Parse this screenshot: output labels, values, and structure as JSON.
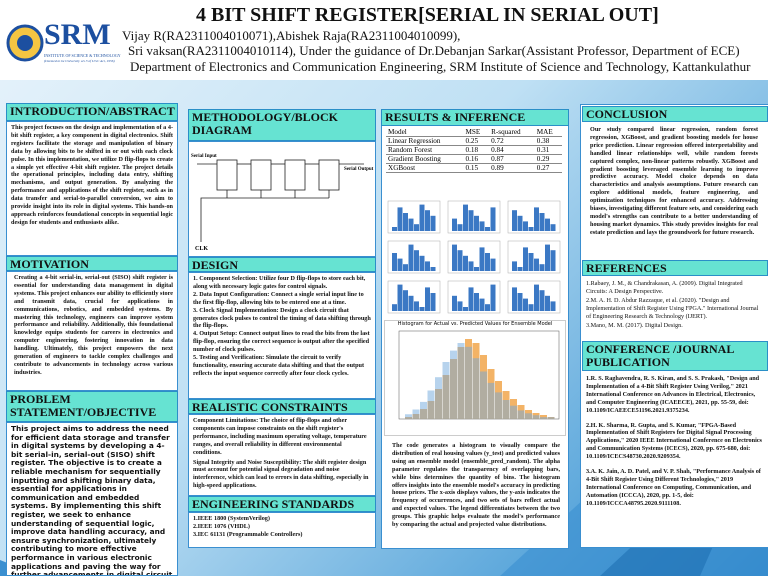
{
  "header": {
    "logo": "SRM",
    "logo_sub": "INSTITUTE OF SCIENCE & TECHNOLOGY",
    "logo_note": "(Deemed to be University u/s 3 of UGC Act, 1956)",
    "title": "4 BIT SHIFT REGISTER[SERIAL IN SERIAL OUT]",
    "authors1": "Vijay R(RA2311004010071),Abishek Raja(RA2311004010099),",
    "authors2": "Sri vaksan(RA2311004010114), Under the guidance of Dr.Debanjan Sarkar(Assistant Professor, Department of ECE)",
    "department": "Department of Electronics and Communication Engineering, SRM Institute of Science and Technology, Kattankulathur"
  },
  "introduction": {
    "heading": "INTRODUCTION/ABSTRACT",
    "text": "This project focuses on the design and implementation of a 4-bit shift register, a key component in digital electronics. Shift registers facilitate the storage and manipulation of binary data by allowing bits to be shifted in or out with each clock pulse. In this implementation, we utilize D flip-flops to create a simple yet effective 4-bit shift register. The project details the operational principles, including data entry, shifting mechanisms, and output generation. By analyzing the performance and applications of the shift register, such as in data transfer and serial-to-parallel conversion, we aim to provide insight into its role in digital systems. This hands-on approach reinforces foundational concepts in sequential logic design for students and enthusiasts alike."
  },
  "motivation": {
    "heading": "MOTIVATION",
    "text": "Creating a 4-bit serial-in, serial-out (SISO) shift register is essential for understanding data management in digital systems. This project enhances our ability to efficiently store and transmit data, crucial for applications in communications, robotics, and embedded systems. By mastering this technology, engineers can improve system performance and reliability. Additionally, this foundational knowledge equips students for careers in electronics and computer engineering, fostering innovation in data handling. Ultimately, this project empowers the next generation of engineers to tackle complex challenges and contribute to advancements in technology across various industries."
  },
  "problem": {
    "heading": "PROBLEM STATEMENT/OBJECTIVE",
    "text": "This project aims to address the need for efficient data storage and transfer in digital systems by developing a 4-bit serial-in, serial-out (SISO) shift register. The objective is to create a reliable mechanism for sequentially inputting and shifting binary data, essential for applications in communication and embedded systems. By implementing this shift register, we seek to enhance understanding of sequential logic, improve data handling accuracy, and ensure synchronization, ultimately contributing to more effective performance in various electronic applications and paving the way for further advancements in digital circuit design."
  },
  "methodology": {
    "heading": "METHODOLOGY/BLOCK DIAGRAM",
    "serial_input": "Serial Input",
    "serial_output": "Serial Output",
    "clock": "CLK"
  },
  "design": {
    "heading": "DESIGN",
    "items": [
      "1. Component Selection: Utilize four D flip-flops to store each bit, along with necessary logic gates for control signals.",
      "2. Data Input Configuration: Connect a single serial input line to the first flip-flop, allowing bits to be entered one at a time.",
      "3. Clock Signal Implementation: Design a clock circuit that generates clock pulses to control the timing of data shifting through the flip-flops.",
      "4. Output Setup: Connect output lines to read the bits from the last flip-flop, ensuring the correct sequence is output after the specified number of clock pulses.",
      "5. Testing and Verification: Simulate the circuit to verify functionality, ensuring accurate data shifting and that the output reflects the input sequence correctly after four clock cycles."
    ]
  },
  "constraints": {
    "heading": "REALISTIC CONSTRAINTS",
    "items": [
      "Component Limitations: The choice of flip-flops and other components can impose constraints on the shift register's performance, including maximum operating voltage, temperature ranges, and overall reliability in different environmental conditions.",
      "Signal Integrity and Noise Susceptibility: The shift register design must account for potential signal degradation and noise interference, which can lead to errors in data shifting, especially in high-speed applications."
    ]
  },
  "standards": {
    "heading": "ENGINEERING STANDARDS",
    "items": [
      "1.IEEE 1800 (SystemVerilog)",
      "2.IEEE 1076 (VHDL)",
      "3.IEC 61131 (Programmable Controllers)"
    ]
  },
  "results": {
    "heading": "RESULTS & INFERENCE",
    "table": {
      "columns": [
        "Model",
        "MSE",
        "R-squared",
        "MAE"
      ],
      "rows": [
        [
          "Linear Regression",
          0.25,
          0.72,
          0.38
        ],
        [
          "Random Forest",
          0.18,
          0.84,
          0.31
        ],
        [
          "Gradient Boosting",
          0.16,
          0.87,
          0.29
        ],
        [
          "XGBoost",
          0.15,
          0.89,
          0.27
        ]
      ]
    },
    "histogram_title": "Histogram for Actual vs. Predicted Values for Ensemble Model",
    "text": "The code generates a histogram to visually compare the distribution of real housing values (y_test) and predicted values using an ensemble model (ensemble_pred_random). The alpha parameter regulates the transparency of overlapping bars, while bins determines the quantity of bins. The histogram offers insights into the ensemble model's accuracy in predicting house prices. The x-axis displays values, the y-axis indicates the frequency of occurrences, and two sets of bars reflect actual and expected values. The legend differentiates between the two groups. This graphic helps evaluate the model's performance by comparing the actual and projected value distributions."
  },
  "conclusion": {
    "heading": "CONCLUSION",
    "text": "Our study compared linear regression, random forest regression, XGBoost, and gradient boosting models for house price prediction. Linear regression offered interpretability and handled linear relationships well, while random forests captured complex, non-linear patterns robustly. XGBoost and gradient boosting leveraged ensemble learning to improve predictive accuracy. Model choice depends on data characteristics and analysis assumptions. Future research can explore additional models, feature engineering, and optimization techniques for enhanced accuracy. Addressing biases, investigating different feature sets, and considering each model's strengths can contribute to a better understanding of housing market dynamics. This study provides insights for real estate prediction and lays the groundwork for future research."
  },
  "references": {
    "heading": "REFERENCES",
    "items": [
      "1.Rabaey, J. M., & Chandrakasan, A. (2009). Digital Integrated Circuits: A Design Perspective.",
      "2.M. A. H. D. Abdur Razzaque, et al. (2020). \"Design and Implementation of Shift Register Using FPGA.\" International Journal of Engineering Research & Technology (IJERT).",
      "3.Mano, M. M. (2017). Digital Design."
    ]
  },
  "conference": {
    "heading": "CONFERENCE /JOURNAL PUBLICATION",
    "items": [
      "1.R. S. Raghavendra, R. S. Kiran, and S. S. Prakash, \"Design and Implementation of a 4-Bit Shift Register Using Verilog,\" 2021 International Conference on Advances in Electrical, Electronics, and Computer Engineering (ICAEECE), 2021, pp. 55-59, doi: 10.1109/ICAEECE51196.2021.9375234.",
      "2.H. K. Sharma, R. Gupta, and S. Kumar, \"FPGA-Based Implementation of Shift Registers for Digital Signal Processing Applications,\" 2020 IEEE International Conference on Electronics and Communication Systems (ICECS), 2020, pp. 675-680, doi: 10.1109/ICECS48730.2020.9209354.",
      "3.A. K. Jain, A. D. Patel, and V. P. Shah, \"Performance Analysis of 4-Bit Shift Register Using Different Technologies,\" 2019 International Conference on Computing, Communication, and Automation (ICCCA), 2020, pp. 1-5, doi: 10.1109/ICCCA48795.2020.9111108."
    ]
  }
}
